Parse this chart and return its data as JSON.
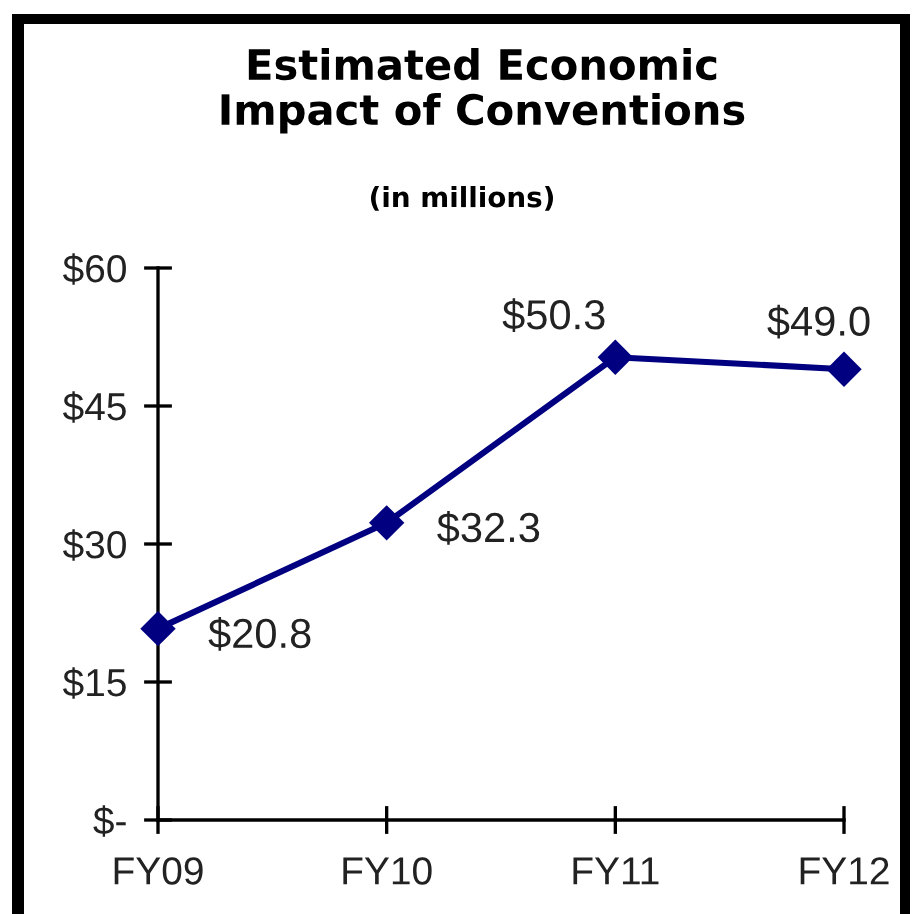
{
  "chart_data": {
    "type": "line",
    "title": "Estimated Economic Impact of Conventions",
    "subtitle": "(in millions)",
    "categories": [
      "FY09",
      "FY10",
      "FY11",
      "FY12"
    ],
    "series": [
      {
        "color": "#000080",
        "values": [
          20.8,
          32.3,
          50.3,
          49.0
        ],
        "value_labels": [
          "$20.8",
          "$32.3",
          "$50.3",
          "$49.0"
        ]
      }
    ],
    "ylim": [
      0,
      60
    ],
    "yticks": [
      {
        "value": 0,
        "label": "$-"
      },
      {
        "value": 15,
        "label": "$15"
      },
      {
        "value": 30,
        "label": "$30"
      },
      {
        "value": 45,
        "label": "$45"
      },
      {
        "value": 60,
        "label": "$60"
      }
    ],
    "marker": "diamond",
    "line_style": "solid",
    "grid": false,
    "legend": false
  }
}
